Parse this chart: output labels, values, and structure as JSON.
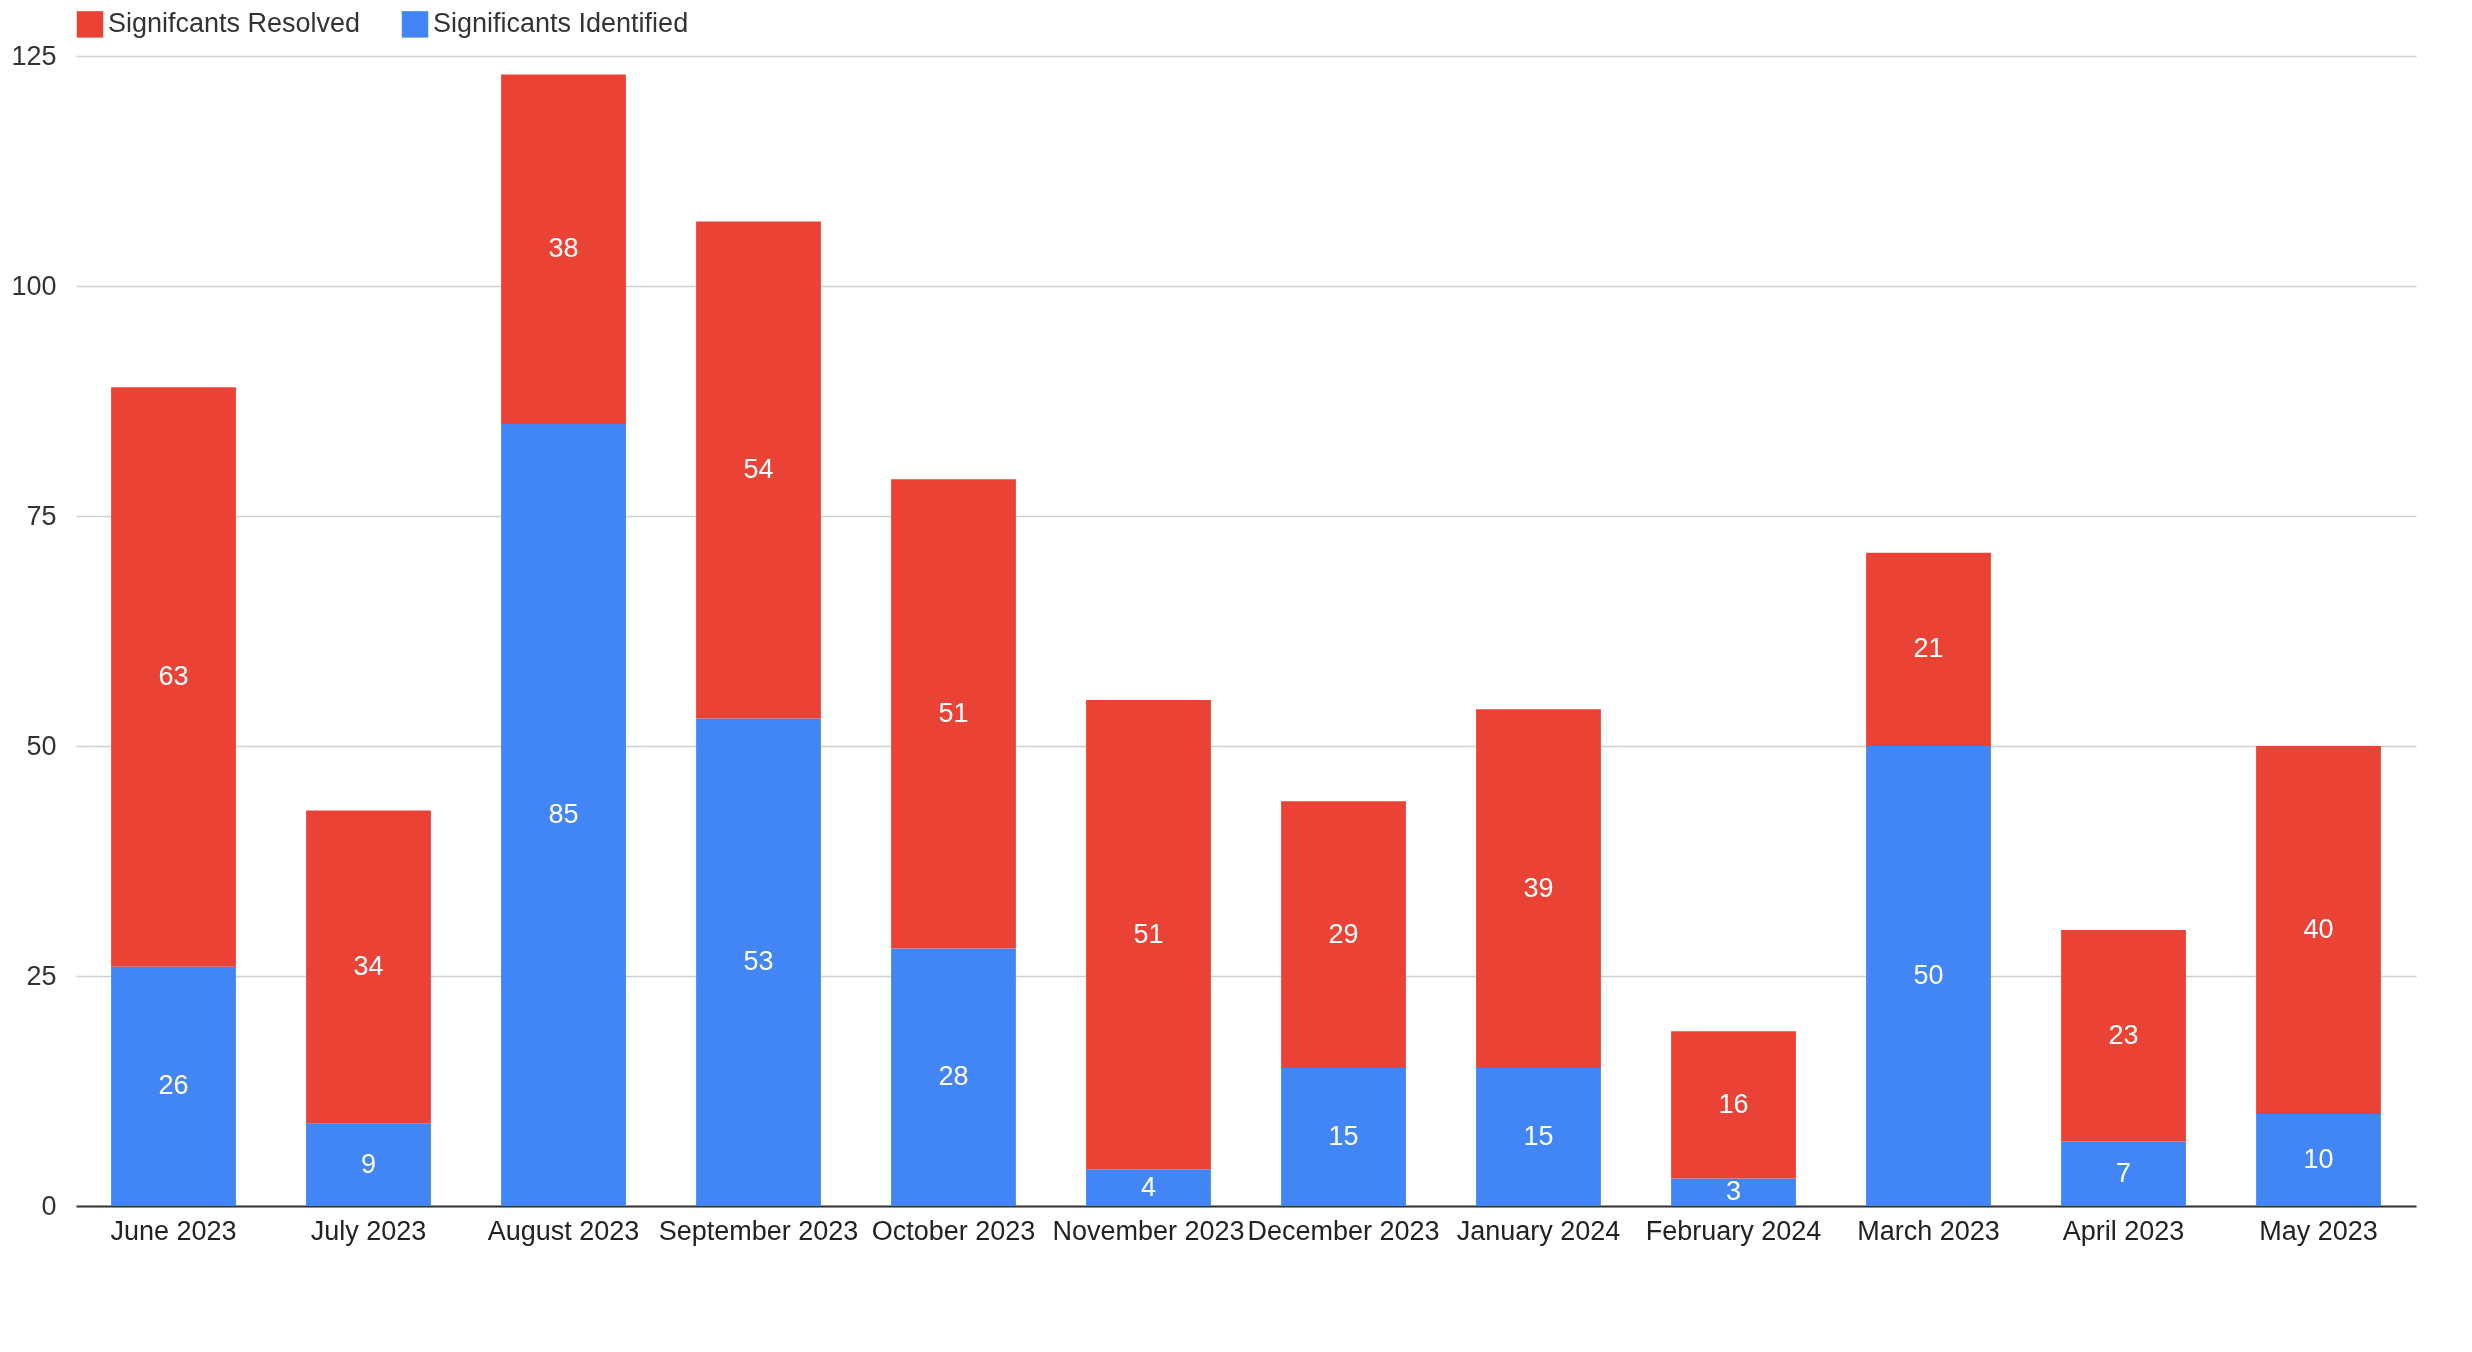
{
  "chart_data": {
    "type": "bar",
    "stacked": true,
    "categories": [
      "June 2023",
      "July 2023",
      "August 2023",
      "September 2023",
      "October 2023",
      "November 2023",
      "December 2023",
      "January 2024",
      "February 2024",
      "March 2023",
      "April 2023",
      "May 2023"
    ],
    "series": [
      {
        "name": "Significants Identified",
        "color": "#4285f4",
        "values": [
          26,
          9,
          85,
          53,
          28,
          4,
          15,
          15,
          3,
          50,
          7,
          10
        ]
      },
      {
        "name": "Signifcants Resolved",
        "color": "#ea4335",
        "values": [
          63,
          34,
          38,
          54,
          51,
          51,
          29,
          39,
          16,
          21,
          23,
          40
        ]
      }
    ],
    "ylim": [
      0,
      125
    ],
    "yticks": [
      0,
      25,
      50,
      75,
      100,
      125
    ],
    "grid": "y",
    "legend": "top",
    "data_labels": true
  }
}
